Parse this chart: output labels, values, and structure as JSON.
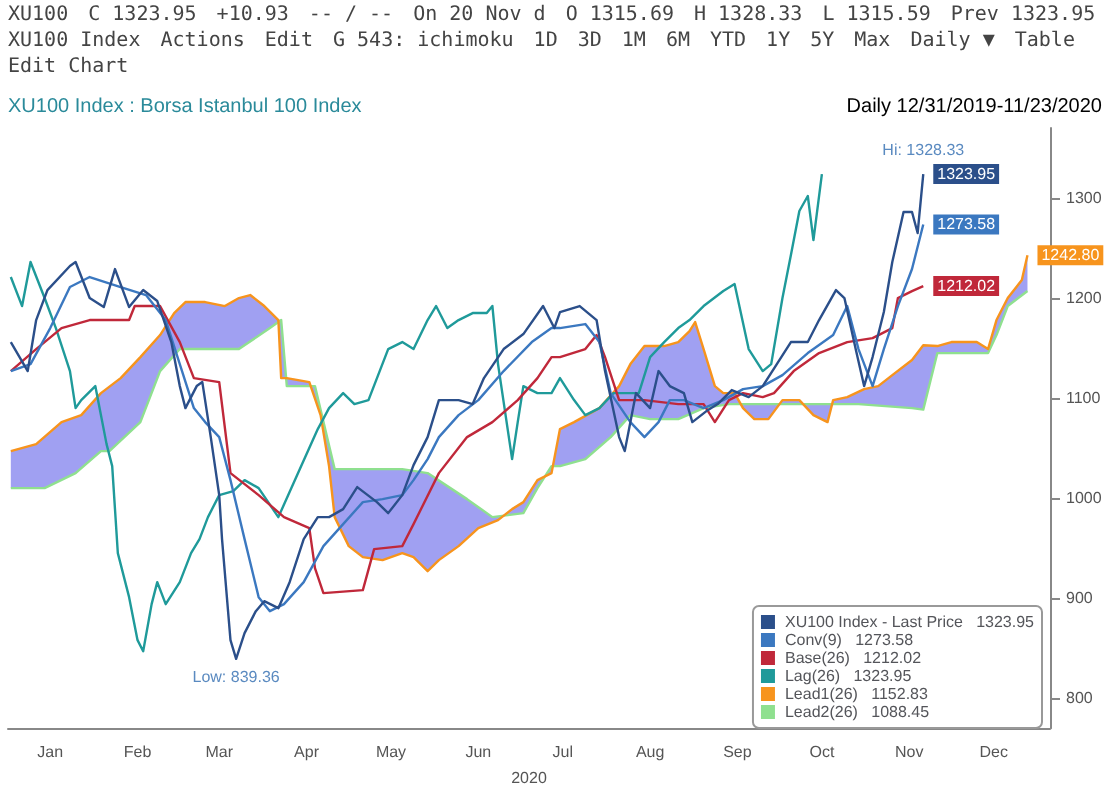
{
  "chart_data": {
    "type": "line",
    "title": "XU100 Index : Borsa Istanbul 100 Index",
    "subtitle": "Daily   12/31/2019-11/23/2020",
    "xlabel": "2020",
    "annotations": [
      "XU100",
      "C 1323.95",
      "+10.93",
      "-- / --",
      "On 20 Nov d",
      "O 1315.69",
      "H 1328.33",
      "L 1315.59",
      "Prev 1323.95",
      "XU100 Index",
      "Actions",
      "Edit",
      "G 543: ichimoku",
      "1D",
      "3D",
      "1M",
      "6M",
      "YTD",
      "1Y",
      "5Y",
      "Max",
      "Daily ▼",
      "Table",
      "Edit Chart",
      {
        "text": "Hi: 1328.33",
        "x": "2020-11-20",
        "y": 1328.33
      }
    ],
    "xlim": [
      "2019-12-31",
      "2021-01-04"
    ],
    "xticks": [
      {
        "value": "2020-01-15",
        "label": "Jan"
      },
      {
        "value": "2020-02-15",
        "label": "Feb"
      },
      {
        "value": "2020-03-15",
        "label": "Mar"
      },
      {
        "value": "2020-04-15",
        "label": "Apr"
      },
      {
        "value": "2020-05-15",
        "label": "May"
      },
      {
        "value": "2020-06-15",
        "label": "Jun"
      },
      {
        "value": "2020-07-15",
        "label": "Jul"
      },
      {
        "value": "2020-08-15",
        "label": "Aug"
      },
      {
        "value": "2020-09-15",
        "label": "Sep"
      },
      {
        "value": "2020-10-15",
        "label": "Oct"
      },
      {
        "value": "2020-11-15",
        "label": "Nov"
      },
      {
        "value": "2020-12-15",
        "label": "Dec"
      }
    ],
    "ylim": [
      770,
      1370
    ],
    "yticks": [
      800,
      900,
      1000,
      1100,
      1200,
      1300
    ],
    "grid": false,
    "legend": "bottom right",
    "marker": "none",
    "line_style": "solid",
    "series": [
      {
        "name": "XU100 Index - Last Price   1323.95",
        "color": "#2b4f8a",
        "x": [
          "2020-01-01",
          "2020-01-07",
          "2020-01-10",
          "2020-01-14",
          "2020-01-22",
          "2020-01-24",
          "2020-01-29",
          "2020-02-03",
          "2020-02-07",
          "2020-02-12",
          "2020-02-17",
          "2020-02-22",
          "2020-02-27",
          "2020-03-01",
          "2020-03-03",
          "2020-03-07",
          "2020-03-09",
          "2020-03-12",
          "2020-03-15",
          "2020-03-16",
          "2020-03-19",
          "2020-03-21",
          "2020-03-24",
          "2020-03-28",
          "2020-03-31",
          "2020-04-05",
          "2020-04-09",
          "2020-04-14",
          "2020-04-19",
          "2020-04-23",
          "2020-04-28",
          "2020-05-03",
          "2020-05-10",
          "2020-05-14",
          "2020-05-19",
          "2020-05-23",
          "2020-05-28",
          "2020-06-01",
          "2020-06-08",
          "2020-06-13",
          "2020-06-17",
          "2020-06-24",
          "2020-07-01",
          "2020-07-08",
          "2020-07-12",
          "2020-07-14",
          "2020-07-21",
          "2020-07-27",
          "2020-07-30",
          "2020-08-04",
          "2020-08-06",
          "2020-08-10",
          "2020-08-15",
          "2020-08-18",
          "2020-08-22",
          "2020-08-27",
          "2020-08-30",
          "2020-09-04",
          "2020-09-08",
          "2020-09-13",
          "2020-09-19",
          "2020-09-24",
          "2020-09-29",
          "2020-10-04",
          "2020-10-10",
          "2020-10-14",
          "2020-10-20",
          "2020-10-23",
          "2020-10-27",
          "2020-10-30",
          "2020-11-02",
          "2020-11-06",
          "2020-11-09",
          "2020-11-13",
          "2020-11-16",
          "2020-11-18",
          "2020-11-20"
        ],
        "values": [
          1156,
          1127,
          1178,
          1208,
          1232,
          1236,
          1200,
          1191,
          1229,
          1191,
          1208,
          1197,
          1156,
          1112,
          1090,
          1112,
          1116,
          1061,
          1003,
          959,
          858,
          839.36,
          865,
          887,
          897,
          890,
          916,
          959,
          981,
          981,
          989,
          1011,
          996,
          985,
          1003,
          1033,
          1061,
          1098,
          1098,
          1094,
          1120,
          1149,
          1164,
          1192,
          1170,
          1186,
          1192,
          1178,
          1127,
          1061,
          1047,
          1105,
          1090,
          1127,
          1112,
          1105,
          1076,
          1087,
          1094,
          1108,
          1101,
          1112,
          1134,
          1156,
          1156,
          1178,
          1208,
          1200,
          1149,
          1112,
          1141,
          1186,
          1236,
          1286,
          1286,
          1265,
          1323.95
        ],
        "value_labels": [
          null,
          null,
          null,
          null,
          null,
          null,
          null,
          null,
          null,
          null,
          null,
          null,
          null,
          null,
          null,
          null,
          null,
          null,
          null,
          null,
          null,
          "Low: 839.36",
          null,
          null,
          null,
          null,
          null,
          null,
          null,
          null,
          null,
          null,
          null,
          null,
          null,
          null,
          null,
          null,
          null,
          null,
          null,
          null,
          null,
          null,
          null,
          null,
          null,
          null,
          null,
          null,
          null,
          null,
          null,
          null,
          null,
          null,
          null,
          null,
          null,
          null,
          null,
          null,
          null,
          null,
          null,
          null,
          null,
          null,
          null,
          null,
          null,
          null,
          null,
          null,
          null,
          null,
          "1323.95"
        ]
      },
      {
        "name": "Conv(9)   1273.58",
        "color": "#3b78c0",
        "x": [
          "2020-01-01",
          "2020-01-08",
          "2020-01-15",
          "2020-01-22",
          "2020-01-29",
          "2020-02-09",
          "2020-02-18",
          "2020-02-25",
          "2020-03-01",
          "2020-03-06",
          "2020-03-10",
          "2020-03-15",
          "2020-03-19",
          "2020-03-24",
          "2020-03-29",
          "2020-04-02",
          "2020-04-07",
          "2020-04-14",
          "2020-04-21",
          "2020-04-28",
          "2020-05-05",
          "2020-05-12",
          "2020-05-19",
          "2020-05-23",
          "2020-05-28",
          "2020-06-01",
          "2020-06-08",
          "2020-06-15",
          "2020-06-24",
          "2020-07-04",
          "2020-07-11",
          "2020-07-14",
          "2020-07-23",
          "2020-07-28",
          "2020-08-01",
          "2020-08-08",
          "2020-08-13",
          "2020-08-18",
          "2020-08-22",
          "2020-08-27",
          "2020-09-03",
          "2020-09-10",
          "2020-09-17",
          "2020-09-24",
          "2020-10-01",
          "2020-10-10",
          "2020-10-19",
          "2020-10-24",
          "2020-10-28",
          "2020-11-02",
          "2020-11-06",
          "2020-11-11",
          "2020-11-16",
          "2020-11-20"
        ],
        "values": [
          1127,
          1134,
          1170,
          1211,
          1221,
          1211,
          1203,
          1178,
          1134,
          1090,
          1076,
          1061,
          1018,
          959,
          901,
          887,
          894,
          916,
          952,
          974,
          996,
          999,
          1003,
          1018,
          1039,
          1061,
          1083,
          1098,
          1127,
          1156,
          1170,
          1170,
          1174,
          1156,
          1105,
          1076,
          1061,
          1076,
          1098,
          1098,
          1090,
          1098,
          1109,
          1112,
          1123,
          1145,
          1163,
          1192,
          1149,
          1112,
          1149,
          1192,
          1229,
          1273.58
        ],
        "value_labels": [
          null,
          null,
          null,
          null,
          null,
          null,
          null,
          null,
          null,
          null,
          null,
          null,
          null,
          null,
          null,
          null,
          null,
          null,
          null,
          null,
          null,
          null,
          null,
          null,
          null,
          null,
          null,
          null,
          null,
          null,
          null,
          null,
          null,
          null,
          null,
          null,
          null,
          null,
          null,
          null,
          null,
          null,
          null,
          null,
          null,
          null,
          null,
          null,
          null,
          null,
          null,
          null,
          null,
          "1273.58"
        ]
      },
      {
        "name": "Base(26)   1212.02",
        "color": "#c0283a",
        "x": [
          "2020-01-01",
          "2020-01-10",
          "2020-01-19",
          "2020-01-29",
          "2020-02-12",
          "2020-02-14",
          "2020-02-23",
          "2020-03-01",
          "2020-03-06",
          "2020-03-15",
          "2020-03-19",
          "2020-03-29",
          "2020-04-07",
          "2020-04-16",
          "2020-04-18",
          "2020-04-21",
          "2020-05-05",
          "2020-05-09",
          "2020-05-19",
          "2020-05-23",
          "2020-06-01",
          "2020-06-11",
          "2020-06-20",
          "2020-06-29",
          "2020-07-06",
          "2020-07-11",
          "2020-07-14",
          "2020-07-23",
          "2020-07-27",
          "2020-07-30",
          "2020-08-04",
          "2020-08-13",
          "2020-08-25",
          "2020-09-03",
          "2020-09-07",
          "2020-09-12",
          "2020-09-17",
          "2020-09-24",
          "2020-09-28",
          "2020-10-05",
          "2020-10-14",
          "2020-10-24",
          "2020-11-02",
          "2020-11-09",
          "2020-11-11",
          "2020-11-16",
          "2020-11-20"
        ],
        "values": [
          1127,
          1149,
          1170,
          1178,
          1178,
          1192,
          1192,
          1156,
          1120,
          1116,
          1025,
          1003,
          981,
          970,
          930,
          905,
          908,
          949,
          952,
          974,
          1025,
          1061,
          1076,
          1098,
          1120,
          1141,
          1141,
          1149,
          1163,
          1141,
          1098,
          1098,
          1094,
          1094,
          1076,
          1098,
          1105,
          1101,
          1105,
          1127,
          1145,
          1156,
          1160,
          1170,
          1200,
          1207,
          1212.02
        ],
        "value_labels": [
          null,
          null,
          null,
          null,
          null,
          null,
          null,
          null,
          null,
          null,
          null,
          null,
          null,
          null,
          null,
          null,
          null,
          null,
          null,
          null,
          null,
          null,
          null,
          null,
          null,
          null,
          null,
          null,
          null,
          null,
          null,
          null,
          null,
          null,
          null,
          null,
          null,
          null,
          null,
          null,
          null,
          null,
          null,
          null,
          null,
          null,
          "1212.02"
        ]
      },
      {
        "name": "Lag(26)   1323.95",
        "color": "#1f9a9a",
        "x": [
          "2020-01-01",
          "2020-01-05",
          "2020-01-08",
          "2020-01-13",
          "2020-01-17",
          "2020-01-22",
          "2020-01-24",
          "2020-01-26",
          "2020-01-31",
          "2020-02-04",
          "2020-02-06",
          "2020-02-08",
          "2020-02-12",
          "2020-02-15",
          "2020-02-17",
          "2020-02-20",
          "2020-02-22",
          "2020-02-25",
          "2020-03-01",
          "2020-03-05",
          "2020-03-08",
          "2020-03-11",
          "2020-03-15",
          "2020-03-20",
          "2020-03-24",
          "2020-03-29",
          "2020-04-05",
          "2020-04-12",
          "2020-04-19",
          "2020-04-23",
          "2020-04-28",
          "2020-05-02",
          "2020-05-07",
          "2020-05-14",
          "2020-05-19",
          "2020-05-23",
          "2020-05-28",
          "2020-05-31",
          "2020-06-04",
          "2020-06-08",
          "2020-06-13",
          "2020-06-18",
          "2020-06-20",
          "2020-06-22",
          "2020-06-27",
          "2020-06-29",
          "2020-07-01",
          "2020-07-06",
          "2020-07-11",
          "2020-07-14",
          "2020-07-19",
          "2020-07-23",
          "2020-07-28",
          "2020-08-02",
          "2020-08-11",
          "2020-08-15",
          "2020-08-20",
          "2020-08-25",
          "2020-08-29",
          "2020-09-03",
          "2020-09-10",
          "2020-09-14",
          "2020-09-19",
          "2020-09-24",
          "2020-09-27",
          "2020-10-01",
          "2020-10-04",
          "2020-10-07",
          "2020-10-10",
          "2020-10-12",
          "2020-10-15"
        ],
        "values": [
          1221,
          1192,
          1236,
          1200,
          1170,
          1127,
          1090,
          1098,
          1112,
          1054,
          1032,
          945,
          901,
          858,
          847,
          894,
          916,
          894,
          916,
          945,
          959,
          981,
          1003,
          1007,
          1018,
          1010,
          981,
          1025,
          1069,
          1090,
          1105,
          1094,
          1098,
          1149,
          1156,
          1149,
          1178,
          1192,
          1170,
          1178,
          1185,
          1185,
          1192,
          1134,
          1039,
          1076,
          1112,
          1105,
          1105,
          1120,
          1098,
          1083,
          1090,
          1105,
          1105,
          1141,
          1156,
          1170,
          1178,
          1192,
          1207,
          1214,
          1149,
          1127,
          1134,
          1200,
          1243,
          1287,
          1302,
          1258,
          1323.95
        ]
      },
      {
        "name": "Lead1(26)   1152.83",
        "color": "#f7941d",
        "x": [
          "2020-01-01",
          "2020-01-10",
          "2020-01-19",
          "2020-01-26",
          "2020-02-02",
          "2020-02-09",
          "2020-02-16",
          "2020-02-23",
          "2020-02-28",
          "2020-03-03",
          "2020-03-10",
          "2020-03-17",
          "2020-03-22",
          "2020-03-26",
          "2020-03-31",
          "2020-04-05",
          "2020-04-06",
          "2020-04-08",
          "2020-04-16",
          "2020-04-20",
          "2020-04-23",
          "2020-04-25",
          "2020-04-30",
          "2020-05-05",
          "2020-05-12",
          "2020-05-19",
          "2020-05-23",
          "2020-05-28",
          "2020-06-01",
          "2020-06-08",
          "2020-06-15",
          "2020-06-22",
          "2020-06-27",
          "2020-07-01",
          "2020-07-06",
          "2020-07-11",
          "2020-07-14",
          "2020-07-19",
          "2020-07-28",
          "2020-08-04",
          "2020-08-08",
          "2020-08-13",
          "2020-08-20",
          "2020-08-25",
          "2020-08-29",
          "2020-08-31",
          "2020-09-03",
          "2020-09-07",
          "2020-09-10",
          "2020-09-14",
          "2020-09-17",
          "2020-09-21",
          "2020-09-26",
          "2020-10-01",
          "2020-10-07",
          "2020-10-12",
          "2020-10-17",
          "2020-10-19",
          "2020-10-24",
          "2020-10-30",
          "2020-11-04",
          "2020-11-09",
          "2020-11-16",
          "2020-11-20",
          "2020-11-25",
          "2020-11-30",
          "2020-12-04",
          "2020-12-09",
          "2020-12-13",
          "2020-12-16",
          "2020-12-20",
          "2020-12-25",
          "2020-12-27"
        ],
        "values": [
          1047,
          1054,
          1076,
          1083,
          1105,
          1120,
          1141,
          1163,
          1185,
          1196,
          1196,
          1192,
          1200,
          1203,
          1192,
          1178,
          1120,
          1120,
          1116,
          1083,
          1032,
          981,
          952,
          941,
          938,
          945,
          941,
          927,
          938,
          952,
          970,
          978,
          989,
          996,
          1018,
          1025,
          1069,
          1076,
          1090,
          1112,
          1134,
          1152,
          1152,
          1156,
          1167,
          1176,
          1149,
          1112,
          1105,
          1105,
          1090,
          1079,
          1079,
          1098,
          1098,
          1083,
          1076,
          1098,
          1101,
          1109,
          1112,
          1123,
          1138,
          1152.83,
          1152,
          1156,
          1156,
          1156,
          1149,
          1178,
          1200,
          1218,
          1242.8
        ],
        "value_labels": [
          null,
          null,
          null,
          null,
          null,
          null,
          null,
          null,
          null,
          null,
          null,
          null,
          null,
          null,
          null,
          null,
          null,
          null,
          null,
          null,
          null,
          null,
          null,
          null,
          null,
          null,
          null,
          null,
          null,
          null,
          null,
          null,
          null,
          null,
          null,
          null,
          null,
          null,
          null,
          null,
          null,
          null,
          null,
          null,
          null,
          null,
          null,
          null,
          null,
          null,
          null,
          null,
          null,
          null,
          null,
          null,
          null,
          null,
          null,
          null,
          null,
          null,
          null,
          null,
          null,
          null,
          null,
          null,
          null,
          null,
          null,
          null,
          "1242.80"
        ]
      },
      {
        "name": "Lead2(26)   1088.45",
        "color": "#8fe08f",
        "x": [
          "2020-01-01",
          "2020-01-13",
          "2020-01-24",
          "2020-02-02",
          "2020-02-05",
          "2020-02-16",
          "2020-02-23",
          "2020-03-01",
          "2020-03-10",
          "2020-03-22",
          "2020-04-02",
          "2020-04-06",
          "2020-04-08",
          "2020-04-18",
          "2020-04-25",
          "2020-05-19",
          "2020-05-28",
          "2020-06-11",
          "2020-06-20",
          "2020-07-01",
          "2020-07-06",
          "2020-07-11",
          "2020-07-14",
          "2020-07-23",
          "2020-08-01",
          "2020-08-08",
          "2020-08-15",
          "2020-08-25",
          "2020-09-03",
          "2020-09-12",
          "2020-09-24",
          "2020-10-10",
          "2020-10-19",
          "2020-10-28",
          "2020-11-16",
          "2020-11-20",
          "2020-11-25",
          "2020-12-13",
          "2020-12-16",
          "2020-12-20",
          "2020-12-27"
        ],
        "values": [
          1010,
          1010,
          1025,
          1047,
          1047,
          1076,
          1127,
          1149,
          1149,
          1149,
          1170,
          1178,
          1112,
          1112,
          1029,
          1029,
          1025,
          999,
          981,
          985,
          1010,
          1032,
          1032,
          1039,
          1061,
          1083,
          1079,
          1079,
          1090,
          1094,
          1094,
          1094,
          1094,
          1094,
          1090,
          1088.45,
          1145,
          1145,
          1163,
          1192,
          1207
        ]
      }
    ]
  }
}
